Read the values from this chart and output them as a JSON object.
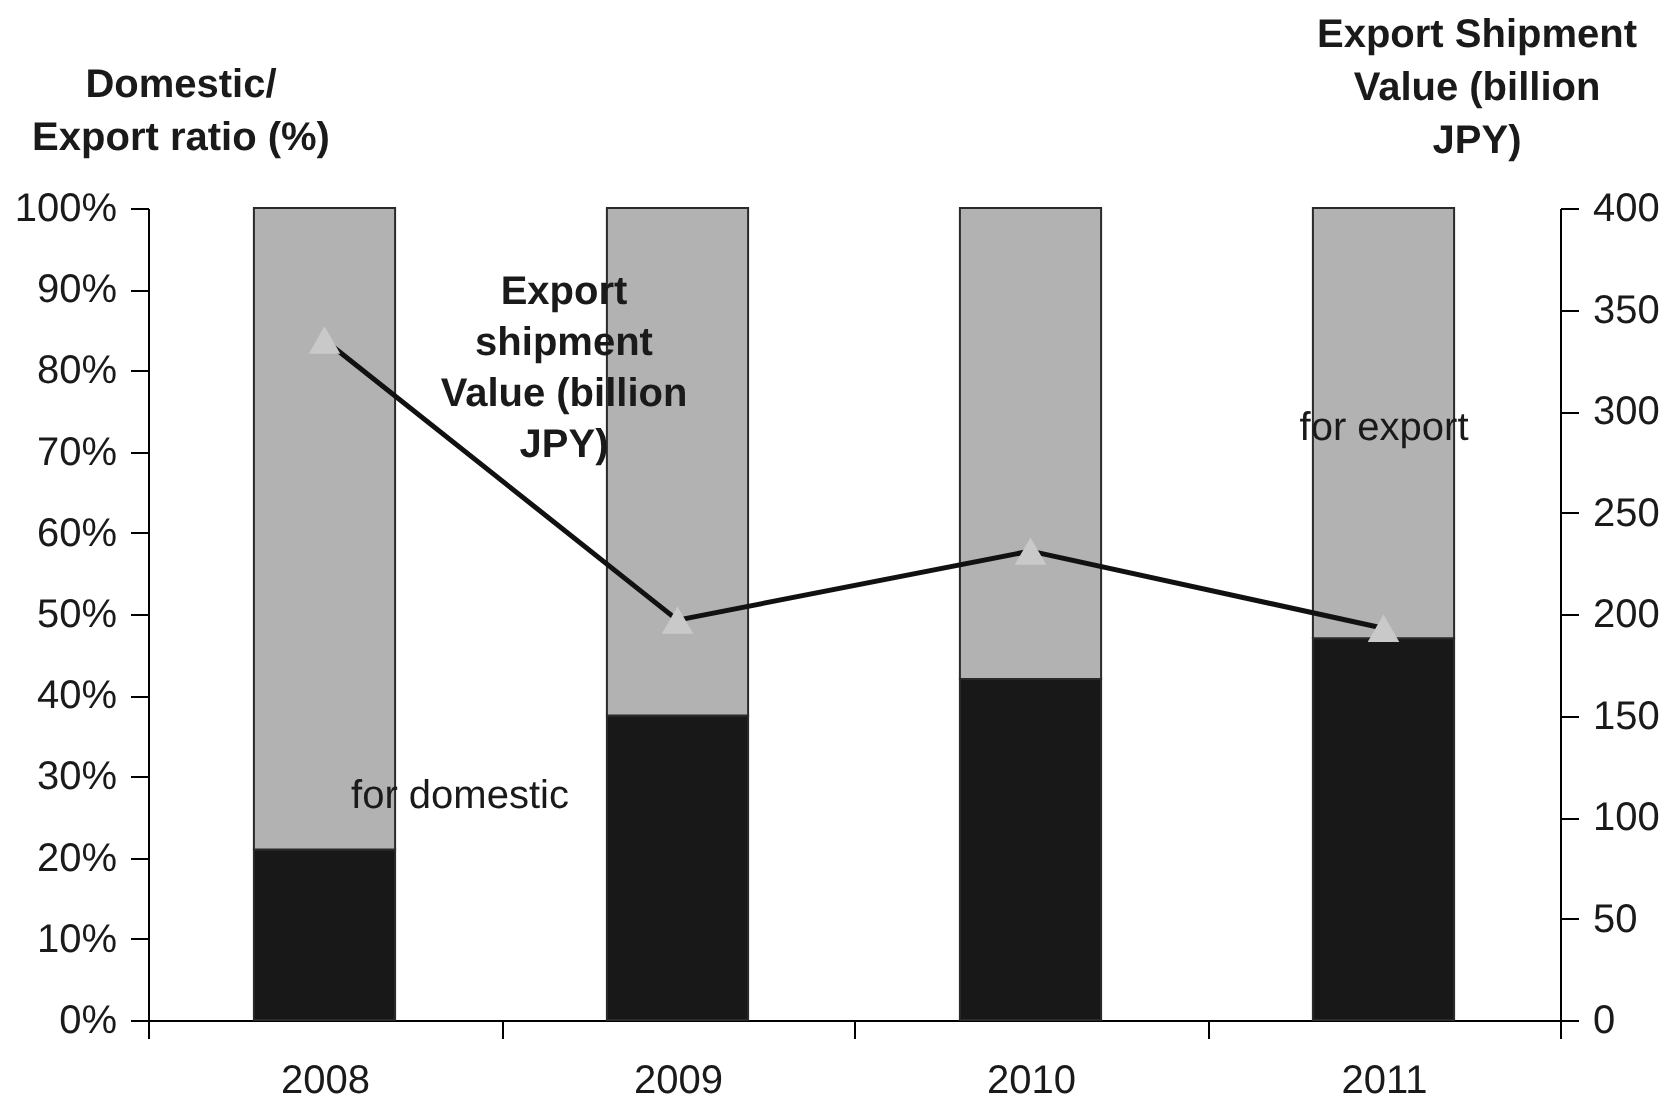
{
  "chart_data": {
    "type": "bar",
    "stacked": true,
    "ylabel": "Domestic/ Export ratio (%)",
    "y2label": "Export Shipment Value (billion JPY)",
    "categories": [
      "2008",
      "2009",
      "2010",
      "2011"
    ],
    "series": [
      {
        "name": "for domestic",
        "color": "#181818",
        "values": [
          21,
          37.5,
          42,
          47
        ]
      },
      {
        "name": "for export",
        "color": "#b2b2b2",
        "values": [
          79,
          62.5,
          58,
          53
        ]
      },
      {
        "name": "Export shipment Value (billion JPY)",
        "type": "line",
        "axis": "y2",
        "color": "#111111",
        "colors": [
          "#c8c9c8",
          "#c8c9c8",
          "#c8c9c8",
          "#c8c9c8"
        ],
        "values": [
          335,
          197,
          231,
          193
        ]
      }
    ],
    "marker": "triangle",
    "ylim": [
      0,
      100
    ],
    "yticks": [
      {
        "value": 0,
        "label": "0%"
      },
      {
        "value": 10,
        "label": "10%"
      },
      {
        "value": 20,
        "label": "20%"
      },
      {
        "value": 30,
        "label": "30%"
      },
      {
        "value": 40,
        "label": "40%"
      },
      {
        "value": 50,
        "label": "50%"
      },
      {
        "value": 60,
        "label": "60%"
      },
      {
        "value": 70,
        "label": "70%"
      },
      {
        "value": 80,
        "label": "80%"
      },
      {
        "value": 90,
        "label": "90%"
      },
      {
        "value": 100,
        "label": "100%"
      }
    ],
    "y2lim": [
      0,
      400
    ],
    "y2ticks": [
      0,
      50,
      100,
      150,
      200,
      250,
      300,
      350,
      400
    ]
  }
}
